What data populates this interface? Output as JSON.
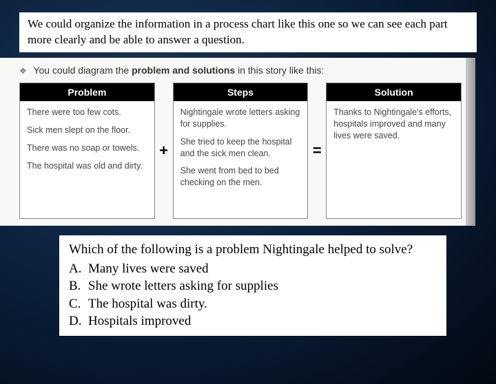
{
  "intro": "We could organize the information in a process chart like this one so we can see each part more clearly and be able to answer a question.",
  "chart": {
    "lead_in_pre": "You could diagram the ",
    "lead_in_bold": "problem and solutions",
    "lead_in_post": " in this story like this:",
    "op_plus": "+",
    "op_eq": "=",
    "problem": {
      "header": "Problem",
      "lines": [
        "There were too few cots.",
        "Sick men slept on the floor.",
        "There was no soap or towels.",
        "The hospital was old and dirty."
      ]
    },
    "steps": {
      "header": "Steps",
      "lines": [
        "Nightingale wrote letters asking for supplies.",
        "She tried to keep the hospital and the sick men clean.",
        "She went from bed to bed checking on the men."
      ]
    },
    "solution": {
      "header": "Solution",
      "lines": [
        "Thanks to Nightingale's efforts, hospitals improved and many lives were saved."
      ]
    }
  },
  "question": {
    "stem": "Which of the following is a problem Nightingale helped to solve?",
    "options": [
      {
        "letter": "A.",
        "text": "Many lives were saved"
      },
      {
        "letter": "B.",
        "text": "She wrote letters asking for supplies"
      },
      {
        "letter": "C.",
        "text": "The hospital was  dirty."
      },
      {
        "letter": "D.",
        "text": "Hospitals improved"
      }
    ]
  }
}
